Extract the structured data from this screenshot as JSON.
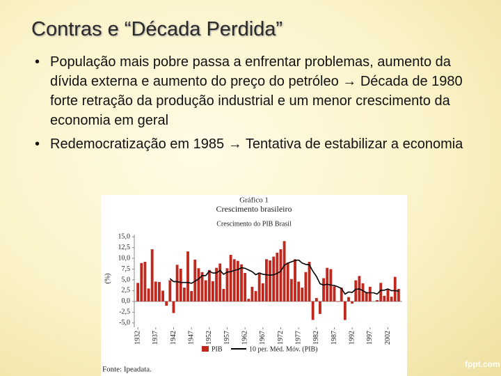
{
  "slide": {
    "title": "Contras e “Década Perdida”",
    "bullets": [
      "População mais pobre passa a enfrentar problemas, aumento da dívida externa e aumento do preço do petróleo → Década de 1980 forte retração da produção industrial e um menor crescimento da economia em geral",
      "Redemocratização em 1985 → Tentativa de estabilizar a economia"
    ],
    "watermark": "fppt.com"
  },
  "chart_data": {
    "type": "bar",
    "title": "Gráfico 1",
    "subtitle": "Crescimento brasileiro",
    "chart_title": "Crescimento do PIB Brasil",
    "y_label": "(%)",
    "source": "Fonte: Ipeadata.",
    "x": [
      1932,
      1933,
      1934,
      1935,
      1936,
      1937,
      1938,
      1939,
      1940,
      1941,
      1942,
      1943,
      1944,
      1945,
      1946,
      1947,
      1948,
      1949,
      1950,
      1951,
      1952,
      1953,
      1954,
      1955,
      1956,
      1957,
      1958,
      1959,
      1960,
      1961,
      1962,
      1963,
      1964,
      1965,
      1966,
      1967,
      1968,
      1969,
      1970,
      1971,
      1972,
      1973,
      1974,
      1975,
      1976,
      1977,
      1978,
      1979,
      1980,
      1981,
      1982,
      1983,
      1984,
      1985,
      1986,
      1987,
      1988,
      1989,
      1990,
      1991,
      1992,
      1993,
      1994,
      1995,
      1996,
      1997,
      1998,
      1999,
      2000,
      2001,
      2002,
      2003,
      2004,
      2005
    ],
    "series": [
      {
        "name": "PIB",
        "type": "bar",
        "color": "#c0281e",
        "values": [
          4.3,
          8.9,
          9.2,
          3.0,
          12.1,
          4.6,
          4.5,
          2.5,
          -1.0,
          4.9,
          -2.7,
          8.5,
          7.6,
          3.2,
          11.6,
          2.4,
          9.7,
          7.7,
          6.8,
          4.9,
          7.3,
          4.7,
          7.8,
          8.8,
          2.9,
          7.7,
          10.8,
          9.8,
          9.4,
          8.6,
          6.6,
          0.6,
          3.4,
          2.4,
          6.7,
          4.2,
          9.8,
          9.5,
          10.4,
          11.3,
          12.1,
          14.0,
          9.0,
          5.2,
          9.8,
          4.6,
          3.2,
          6.8,
          9.2,
          -4.3,
          0.8,
          -2.9,
          5.4,
          7.8,
          7.5,
          3.5,
          -0.1,
          3.2,
          -4.3,
          1.0,
          -0.5,
          4.9,
          5.9,
          4.2,
          2.2,
          3.4,
          0.0,
          0.3,
          4.3,
          1.3,
          2.7,
          1.1,
          5.7,
          2.9
        ]
      },
      {
        "name": "10 per. Méd. Móv. (PIB)",
        "type": "line",
        "color": "#000000",
        "values": [
          null,
          null,
          null,
          null,
          null,
          null,
          null,
          null,
          null,
          5.3,
          4.6,
          4.6,
          4.4,
          4.4,
          4.4,
          4.2,
          4.7,
          5.2,
          6.0,
          6.0,
          7.0,
          6.6,
          6.6,
          7.2,
          6.3,
          6.8,
          6.9,
          7.2,
          7.4,
          7.8,
          7.7,
          7.3,
          6.9,
          6.2,
          6.6,
          6.3,
          6.2,
          6.1,
          6.2,
          6.5,
          7.0,
          8.4,
          8.9,
          9.2,
          9.5,
          9.6,
          8.9,
          8.6,
          8.5,
          7.0,
          5.8,
          4.1,
          3.8,
          4.0,
          3.8,
          3.7,
          3.4,
          3.0,
          1.7,
          2.2,
          2.1,
          2.8,
          2.9,
          2.5,
          2.0,
          2.0,
          2.0,
          1.7,
          2.6,
          2.6,
          2.9,
          2.5,
          2.5,
          2.4
        ]
      }
    ],
    "xlim": [
      1931,
      2006
    ],
    "xticks": [
      1932,
      1937,
      1942,
      1947,
      1952,
      1957,
      1962,
      1967,
      1972,
      1977,
      1982,
      1987,
      1992,
      1997,
      2002
    ],
    "ylim": [
      -6,
      15.5
    ],
    "yticks": [
      {
        "value": -5,
        "label": "-5,0"
      },
      {
        "value": -2.5,
        "label": "-2,5"
      },
      {
        "value": 0,
        "label": "0,0"
      },
      {
        "value": 2.5,
        "label": "2,5"
      },
      {
        "value": 5,
        "label": "5,0"
      },
      {
        "value": 7.5,
        "label": "7,5"
      },
      {
        "value": 10,
        "label": "10,0"
      },
      {
        "value": 12.5,
        "label": "12,5"
      },
      {
        "value": 15,
        "label": "15,0"
      }
    ],
    "grid": false
  }
}
